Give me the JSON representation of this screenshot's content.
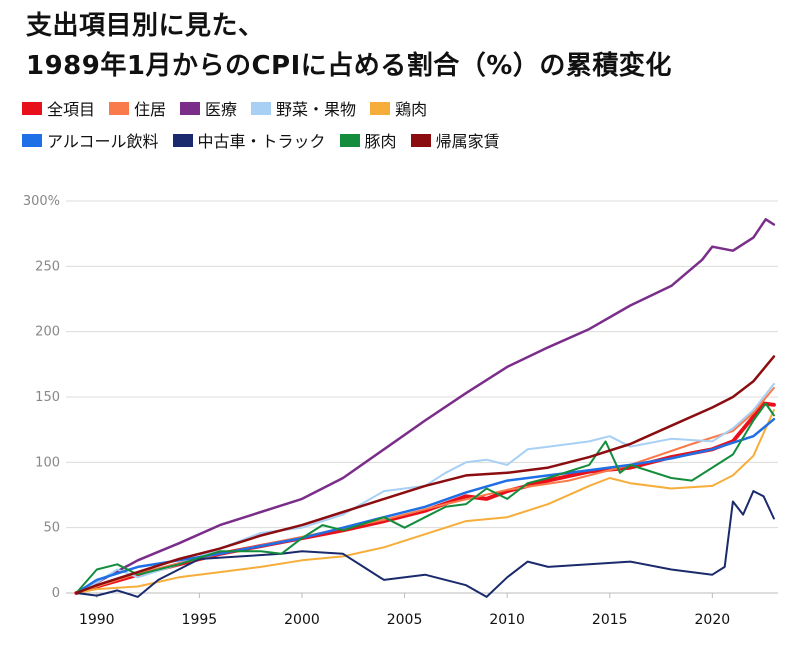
{
  "chart_data": {
    "type": "line",
    "title_line1": "支出項目別に見た、",
    "title_line2": "1989年1月からのCPIに占める割合（%）の累積変化",
    "xlim": [
      1988.5,
      2023.2
    ],
    "ylim": [
      0,
      300
    ],
    "y_ticks": [
      {
        "value": 300,
        "label": "300%"
      },
      {
        "value": 250,
        "label": "250"
      },
      {
        "value": 200,
        "label": "200"
      },
      {
        "value": 150,
        "label": "150"
      },
      {
        "value": 100,
        "label": "100"
      },
      {
        "value": 50,
        "label": "50"
      },
      {
        "value": 0,
        "label": "0"
      }
    ],
    "x_ticks": [
      {
        "value": 1990,
        "label": "1990"
      },
      {
        "value": 1995,
        "label": "1995"
      },
      {
        "value": 2000,
        "label": "2000"
      },
      {
        "value": 2005,
        "label": "2005"
      },
      {
        "value": 2010,
        "label": "2010"
      },
      {
        "value": 2015,
        "label": "2015"
      },
      {
        "value": 2020,
        "label": "2020"
      }
    ],
    "grid": true,
    "legend_position": "top-left",
    "series": [
      {
        "name": "全項目",
        "color": "#e8101a",
        "width": 4,
        "x": [
          1989,
          1990,
          1992,
          1994,
          1996,
          1998,
          2000,
          2002,
          2004,
          2006,
          2008,
          2009,
          2010,
          2012,
          2014,
          2016,
          2018,
          2020,
          2021,
          2022,
          2022.5,
          2023
        ],
        "y": [
          0,
          5,
          14,
          22,
          30,
          36,
          42,
          48,
          55,
          63,
          74,
          72,
          78,
          86,
          93,
          96,
          104,
          110,
          116,
          135,
          145,
          144
        ]
      },
      {
        "name": "住居",
        "color": "#f97a4a",
        "width": 2,
        "x": [
          1989,
          1992,
          1996,
          2000,
          2004,
          2007,
          2010,
          2013,
          2016,
          2019,
          2021,
          2022,
          2023
        ],
        "y": [
          0,
          15,
          30,
          43,
          56,
          68,
          79,
          86,
          98,
          114,
          124,
          138,
          157
        ]
      },
      {
        "name": "医療",
        "color": "#7a2e8a",
        "width": 2.5,
        "x": [
          1989,
          1990,
          1992,
          1994,
          1996,
          1998,
          2000,
          2002,
          2004,
          2006,
          2008,
          2010,
          2012,
          2014,
          2016,
          2018,
          2019.5,
          2020,
          2021,
          2022,
          2022.6,
          2023
        ],
        "y": [
          0,
          8,
          25,
          38,
          52,
          62,
          72,
          88,
          110,
          132,
          153,
          173,
          188,
          202,
          220,
          235,
          255,
          265,
          262,
          272,
          286,
          282
        ]
      },
      {
        "name": "野菜・果物",
        "color": "#a8d0f5",
        "width": 2,
        "x": [
          1989,
          1990,
          1991,
          1992,
          1994,
          1996,
          1998,
          2000,
          2002,
          2004,
          2006,
          2007,
          2008,
          2009,
          2010,
          2011,
          2012,
          2014,
          2015,
          2016,
          2018,
          2020,
          2021,
          2022,
          2023
        ],
        "y": [
          0,
          8,
          18,
          12,
          22,
          34,
          46,
          50,
          60,
          78,
          82,
          92,
          100,
          102,
          98,
          110,
          112,
          116,
          120,
          112,
          118,
          116,
          126,
          140,
          160
        ]
      },
      {
        "name": "鶏肉",
        "color": "#f6ad3a",
        "width": 2,
        "x": [
          1989,
          1990,
          1992,
          1994,
          1996,
          1998,
          2000,
          2002,
          2004,
          2006,
          2008,
          2010,
          2012,
          2014,
          2015,
          2016,
          2018,
          2020,
          2021,
          2022,
          2023
        ],
        "y": [
          0,
          3,
          5,
          12,
          16,
          20,
          25,
          28,
          35,
          45,
          55,
          58,
          68,
          82,
          88,
          84,
          80,
          82,
          90,
          105,
          140
        ]
      },
      {
        "name": "アルコール飲料",
        "color": "#1f6fe6",
        "width": 2.5,
        "x": [
          1989,
          1990,
          1992,
          1994,
          1996,
          1998,
          2000,
          2002,
          2004,
          2006,
          2008,
          2010,
          2012,
          2014,
          2016,
          2018,
          2020,
          2022,
          2023
        ],
        "y": [
          0,
          10,
          20,
          25,
          30,
          36,
          42,
          50,
          58,
          66,
          77,
          86,
          90,
          94,
          98,
          103,
          110,
          120,
          133
        ]
      },
      {
        "name": "中古車・トラック",
        "color": "#1a2a6c",
        "width": 2,
        "x": [
          1989,
          1990,
          1991,
          1992,
          1993,
          1995,
          1997,
          1999,
          2000,
          2002,
          2003,
          2004,
          2006,
          2008,
          2009,
          2010,
          2011,
          2012,
          2014,
          2016,
          2018,
          2020,
          2020.6,
          2021,
          2021.5,
          2022,
          2022.5,
          2023
        ],
        "y": [
          0,
          -2,
          2,
          -3,
          10,
          26,
          28,
          30,
          32,
          30,
          20,
          10,
          14,
          6,
          -3,
          12,
          24,
          20,
          22,
          24,
          18,
          14,
          20,
          70,
          60,
          78,
          74,
          57
        ]
      },
      {
        "name": "豚肉",
        "color": "#138d3c",
        "width": 2,
        "x": [
          1989,
          1990,
          1991,
          1992,
          1993,
          1994,
          1996,
          1998,
          1999,
          2000,
          2001,
          2002,
          2004,
          2005,
          2006,
          2007,
          2008,
          2009,
          2010,
          2011,
          2012,
          2014,
          2014.8,
          2015.5,
          2016,
          2018,
          2019,
          2020,
          2021,
          2022,
          2022.6,
          2023
        ],
        "y": [
          0,
          18,
          22,
          14,
          18,
          22,
          32,
          32,
          30,
          42,
          52,
          48,
          58,
          50,
          58,
          66,
          68,
          80,
          72,
          84,
          88,
          98,
          116,
          92,
          98,
          88,
          86,
          96,
          106,
          132,
          145,
          136
        ]
      },
      {
        "name": "帰属家賃",
        "color": "#8b0d10",
        "width": 2.5,
        "x": [
          1989,
          1990,
          1992,
          1994,
          1996,
          1998,
          2000,
          2002,
          2004,
          2006,
          2008,
          2010,
          2012,
          2014,
          2016,
          2018,
          2020,
          2021,
          2022,
          2023
        ],
        "y": [
          0,
          6,
          16,
          26,
          34,
          44,
          52,
          62,
          72,
          82,
          90,
          92,
          96,
          104,
          114,
          128,
          142,
          150,
          162,
          181
        ]
      }
    ]
  }
}
